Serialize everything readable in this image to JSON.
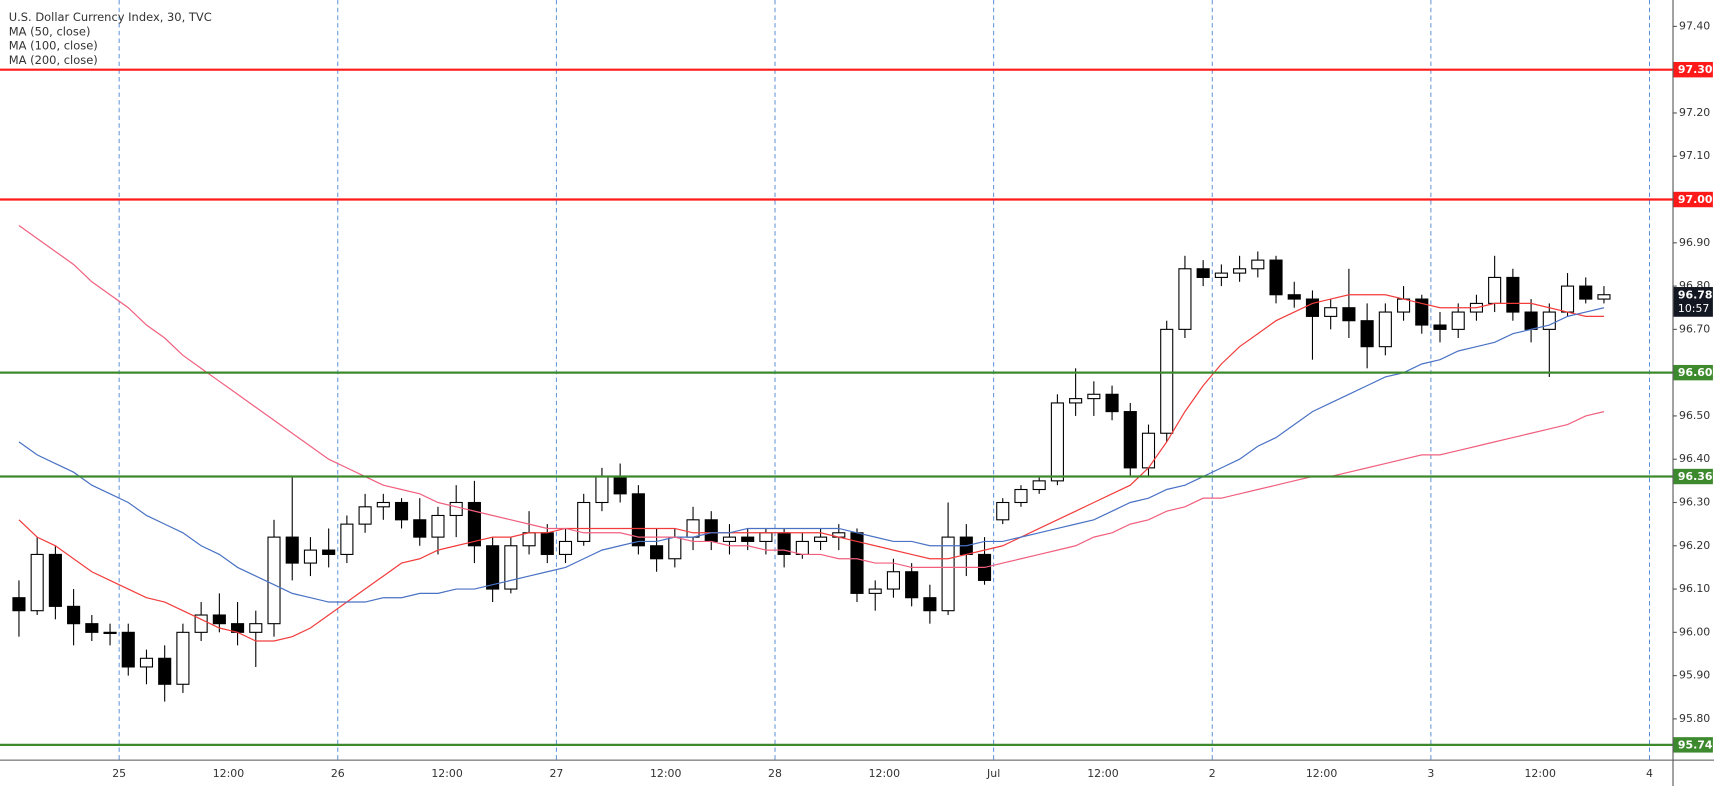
{
  "chart_data": {
    "type": "candlestick",
    "title": "U.S. Dollar Currency Index, 30, TVC",
    "categories": [
      null,
      null,
      null,
      null,
      null,
      null,
      "25",
      null,
      null,
      null,
      null,
      null,
      "12:00",
      null,
      null,
      null,
      null,
      null,
      "26",
      null,
      null,
      null,
      null,
      null,
      "12:00",
      null,
      null,
      null,
      null,
      null,
      "27",
      null,
      null,
      null,
      null,
      null,
      "12:00",
      null,
      null,
      null,
      null,
      null,
      "28",
      null,
      null,
      null,
      null,
      null,
      "12:00",
      null,
      null,
      null,
      null,
      null,
      "Jul",
      null,
      null,
      null,
      null,
      null,
      "12:00",
      null,
      null,
      null,
      null,
      null,
      "2",
      null,
      null,
      null,
      null,
      null,
      "12:00",
      null,
      null,
      null,
      null,
      null,
      "3",
      null,
      null,
      null,
      null,
      null,
      "12:00",
      null,
      null,
      null,
      null,
      null,
      "4"
    ],
    "ohlc": [
      [
        96.08,
        96.12,
        95.99,
        96.05
      ],
      [
        96.05,
        96.22,
        96.04,
        96.18
      ],
      [
        96.18,
        96.2,
        96.03,
        96.06
      ],
      [
        96.06,
        96.1,
        95.97,
        96.02
      ],
      [
        96.02,
        96.04,
        95.98,
        96.0
      ],
      [
        96.0,
        96.02,
        95.97,
        96.0
      ],
      [
        96.0,
        96.02,
        95.9,
        95.92
      ],
      [
        95.92,
        95.96,
        95.88,
        95.94
      ],
      [
        95.94,
        95.97,
        95.84,
        95.88
      ],
      [
        95.88,
        96.02,
        95.86,
        96.0
      ],
      [
        96.0,
        96.07,
        95.98,
        96.04
      ],
      [
        96.04,
        96.09,
        96.0,
        96.02
      ],
      [
        96.02,
        96.07,
        95.97,
        96.0
      ],
      [
        96.0,
        96.05,
        95.92,
        96.02
      ],
      [
        96.02,
        96.26,
        95.99,
        96.22
      ],
      [
        96.22,
        96.36,
        96.12,
        96.16
      ],
      [
        96.16,
        96.22,
        96.13,
        96.19
      ],
      [
        96.19,
        96.24,
        96.15,
        96.18
      ],
      [
        96.18,
        96.27,
        96.16,
        96.25
      ],
      [
        96.25,
        96.32,
        96.23,
        96.29
      ],
      [
        96.29,
        96.32,
        96.26,
        96.3
      ],
      [
        96.3,
        96.31,
        96.24,
        96.26
      ],
      [
        96.26,
        96.31,
        96.2,
        96.22
      ],
      [
        96.22,
        96.29,
        96.18,
        96.27
      ],
      [
        96.27,
        96.34,
        96.22,
        96.3
      ],
      [
        96.3,
        96.35,
        96.16,
        96.2
      ],
      [
        96.2,
        96.22,
        96.07,
        96.1
      ],
      [
        96.1,
        96.22,
        96.09,
        96.2
      ],
      [
        96.2,
        96.28,
        96.18,
        96.23
      ],
      [
        96.23,
        96.25,
        96.16,
        96.18
      ],
      [
        96.18,
        96.24,
        96.16,
        96.21
      ],
      [
        96.21,
        96.32,
        96.2,
        96.3
      ],
      [
        96.3,
        96.38,
        96.28,
        96.36
      ],
      [
        96.36,
        96.39,
        96.3,
        96.32
      ],
      [
        96.32,
        96.34,
        96.18,
        96.2
      ],
      [
        96.2,
        96.24,
        96.14,
        96.17
      ],
      [
        96.17,
        96.24,
        96.15,
        96.22
      ],
      [
        96.22,
        96.29,
        96.19,
        96.26
      ],
      [
        96.26,
        96.28,
        96.19,
        96.21
      ],
      [
        96.21,
        96.25,
        96.18,
        96.22
      ],
      [
        96.22,
        96.24,
        96.19,
        96.21
      ],
      [
        96.21,
        96.24,
        96.18,
        96.23
      ],
      [
        96.23,
        96.24,
        96.15,
        96.18
      ],
      [
        96.18,
        96.23,
        96.17,
        96.21
      ],
      [
        96.21,
        96.24,
        96.19,
        96.22
      ],
      [
        96.22,
        96.25,
        96.19,
        96.23
      ],
      [
        96.23,
        96.24,
        96.07,
        96.09
      ],
      [
        96.09,
        96.12,
        96.05,
        96.1
      ],
      [
        96.1,
        96.17,
        96.08,
        96.14
      ],
      [
        96.14,
        96.16,
        96.06,
        96.08
      ],
      [
        96.08,
        96.11,
        96.02,
        96.05
      ],
      [
        96.05,
        96.3,
        96.04,
        96.22
      ],
      [
        96.22,
        96.25,
        96.13,
        96.18
      ],
      [
        96.18,
        96.22,
        96.11,
        96.12
      ],
      [
        96.26,
        96.31,
        96.25,
        96.3
      ],
      [
        96.3,
        96.34,
        96.29,
        96.33
      ],
      [
        96.33,
        96.36,
        96.32,
        96.35
      ],
      [
        96.35,
        96.55,
        96.34,
        96.53
      ],
      [
        96.53,
        96.61,
        96.5,
        96.54
      ],
      [
        96.54,
        96.58,
        96.5,
        96.55
      ],
      [
        96.55,
        96.57,
        96.49,
        96.51
      ],
      [
        96.51,
        96.53,
        96.36,
        96.38
      ],
      [
        96.38,
        96.48,
        96.36,
        96.46
      ],
      [
        96.46,
        96.72,
        96.44,
        96.7
      ],
      [
        96.7,
        96.87,
        96.68,
        96.84
      ],
      [
        96.84,
        96.86,
        96.8,
        96.82
      ],
      [
        96.82,
        96.85,
        96.8,
        96.83
      ],
      [
        96.83,
        96.87,
        96.81,
        96.84
      ],
      [
        96.84,
        96.88,
        96.82,
        96.86
      ],
      [
        96.86,
        96.87,
        96.76,
        96.78
      ],
      [
        96.78,
        96.81,
        96.75,
        96.77
      ],
      [
        96.77,
        96.79,
        96.63,
        96.73
      ],
      [
        96.73,
        96.77,
        96.7,
        96.75
      ],
      [
        96.75,
        96.84,
        96.68,
        96.72
      ],
      [
        96.72,
        96.76,
        96.61,
        96.66
      ],
      [
        96.66,
        96.76,
        96.64,
        96.74
      ],
      [
        96.74,
        96.8,
        96.72,
        96.77
      ],
      [
        96.77,
        96.78,
        96.69,
        96.71
      ],
      [
        96.71,
        96.74,
        96.67,
        96.7
      ],
      [
        96.7,
        96.76,
        96.68,
        96.74
      ],
      [
        96.74,
        96.78,
        96.72,
        96.76
      ],
      [
        96.76,
        96.87,
        96.74,
        96.82
      ],
      [
        96.82,
        96.84,
        96.72,
        96.74
      ],
      [
        96.74,
        96.77,
        96.67,
        96.7
      ],
      [
        96.7,
        96.76,
        96.59,
        96.74
      ],
      [
        96.74,
        96.83,
        96.73,
        96.8
      ],
      [
        96.8,
        96.82,
        96.76,
        96.77
      ],
      [
        96.77,
        96.8,
        96.76,
        96.78
      ],
      null,
      null,
      null
    ],
    "up_color": "#ffffff",
    "down_color": "#000000",
    "outline_color": "#000000",
    "series": [
      {
        "name": "MA (50, close)",
        "color": "#f23c3c",
        "values": [
          96.26,
          96.22,
          96.2,
          96.17,
          96.14,
          96.12,
          96.1,
          96.08,
          96.07,
          96.05,
          96.03,
          96.01,
          96.0,
          95.98,
          95.98,
          95.99,
          96.01,
          96.04,
          96.07,
          96.1,
          96.13,
          96.16,
          96.17,
          96.19,
          96.2,
          96.21,
          96.22,
          96.22,
          96.23,
          96.23,
          96.24,
          96.24,
          96.24,
          96.24,
          96.24,
          96.24,
          96.24,
          96.23,
          96.23,
          96.23,
          96.23,
          96.23,
          96.23,
          96.23,
          96.23,
          96.22,
          96.21,
          96.2,
          96.19,
          96.18,
          96.17,
          96.17,
          96.18,
          96.19,
          96.2,
          96.22,
          96.24,
          96.26,
          96.28,
          96.3,
          96.32,
          96.34,
          96.38,
          96.44,
          96.51,
          96.57,
          96.62,
          96.66,
          96.69,
          96.72,
          96.74,
          96.76,
          96.77,
          96.78,
          96.78,
          96.78,
          96.77,
          96.76,
          96.75,
          96.75,
          96.75,
          96.76,
          96.76,
          96.76,
          96.75,
          96.74,
          96.73,
          96.73,
          null,
          null,
          null
        ]
      },
      {
        "name": "MA (100, close)",
        "color": "#4a72c4",
        "values": [
          96.44,
          96.41,
          96.39,
          96.37,
          96.34,
          96.32,
          96.3,
          96.27,
          96.25,
          96.23,
          96.2,
          96.18,
          96.15,
          96.13,
          96.11,
          96.09,
          96.08,
          96.07,
          96.07,
          96.07,
          96.08,
          96.08,
          96.09,
          96.09,
          96.1,
          96.1,
          96.11,
          96.12,
          96.13,
          96.14,
          96.15,
          96.17,
          96.19,
          96.2,
          96.21,
          96.21,
          96.22,
          96.22,
          96.23,
          96.23,
          96.24,
          96.24,
          96.24,
          96.24,
          96.24,
          96.24,
          96.23,
          96.22,
          96.21,
          96.21,
          96.2,
          96.2,
          96.2,
          96.21,
          96.21,
          96.22,
          96.23,
          96.24,
          96.25,
          96.26,
          96.28,
          96.3,
          96.31,
          96.33,
          96.34,
          96.36,
          96.38,
          96.4,
          96.43,
          96.45,
          96.48,
          96.51,
          96.53,
          96.55,
          96.57,
          96.59,
          96.6,
          96.62,
          96.63,
          96.65,
          96.66,
          96.67,
          96.69,
          96.7,
          96.71,
          96.73,
          96.74,
          96.75,
          null,
          null,
          null
        ]
      },
      {
        "name": "MA (200, close)",
        "color": "#f0607e",
        "values": [
          96.94,
          96.91,
          96.88,
          96.85,
          96.81,
          96.78,
          96.75,
          96.71,
          96.68,
          96.64,
          96.61,
          96.58,
          96.55,
          96.52,
          96.49,
          96.46,
          96.43,
          96.4,
          96.38,
          96.36,
          96.34,
          96.33,
          96.32,
          96.3,
          96.29,
          96.28,
          96.27,
          96.26,
          96.25,
          96.24,
          96.24,
          96.23,
          96.23,
          96.23,
          96.22,
          96.22,
          96.22,
          96.21,
          96.21,
          96.2,
          96.2,
          96.19,
          96.19,
          96.18,
          96.18,
          96.17,
          96.17,
          96.16,
          96.16,
          96.15,
          96.15,
          96.15,
          96.15,
          96.15,
          96.16,
          96.17,
          96.18,
          96.19,
          96.2,
          96.22,
          96.23,
          96.25,
          96.26,
          96.28,
          96.29,
          96.31,
          96.31,
          96.32,
          96.33,
          96.34,
          96.35,
          96.36,
          96.36,
          96.37,
          96.38,
          96.39,
          96.4,
          96.41,
          96.41,
          96.42,
          96.43,
          96.44,
          96.45,
          96.46,
          96.47,
          96.48,
          96.5,
          96.51,
          null,
          null,
          null
        ]
      }
    ],
    "ylim": [
      95.706,
      97.461
    ],
    "yticks": [
      {
        "value": 95.8,
        "label": "95.80"
      },
      {
        "value": 95.9,
        "label": "95.90"
      },
      {
        "value": 96.0,
        "label": "96.00"
      },
      {
        "value": 96.1,
        "label": "96.10"
      },
      {
        "value": 96.2,
        "label": "96.20"
      },
      {
        "value": 96.3,
        "label": "96.30"
      },
      {
        "value": 96.4,
        "label": "96.40"
      },
      {
        "value": 96.5,
        "label": "96.50"
      },
      {
        "value": 96.6,
        "label": "96.60"
      },
      {
        "value": 96.7,
        "label": "96.70"
      },
      {
        "value": 96.8,
        "label": "96.80"
      },
      {
        "value": 96.9,
        "label": "96.90"
      },
      {
        "value": 97.0,
        "label": "97.00"
      },
      {
        "value": 97.1,
        "label": "97.10"
      },
      {
        "value": 97.2,
        "label": "97.20"
      },
      {
        "value": 97.3,
        "label": "97.30"
      },
      {
        "value": 97.4,
        "label": "97.40"
      }
    ],
    "session_grid_color": "#5b8fd6",
    "levels": [
      {
        "value": 97.3,
        "label": "97.30",
        "color": "#ff1a1a"
      },
      {
        "value": 97.0,
        "label": "97.00",
        "color": "#ff1a1a"
      },
      {
        "value": 96.6,
        "label": "96.60",
        "color": "#3d8a2e"
      },
      {
        "value": 96.36,
        "label": "96.36",
        "color": "#3d8a2e"
      },
      {
        "value": 95.74,
        "label": "95.74",
        "color": "#3d8a2e"
      }
    ],
    "last": {
      "value": 96.78,
      "label": "96.78",
      "countdown": "10:57",
      "color": "#131722"
    }
  }
}
